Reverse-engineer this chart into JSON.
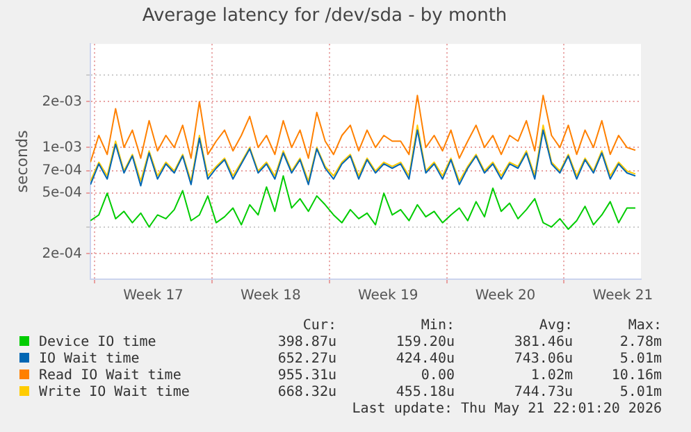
{
  "chart_data": {
    "type": "line",
    "title": "Average latency for /dev/sda - by month",
    "ylabel": "seconds",
    "log": true,
    "grid": true,
    "legend": "bottom",
    "marker": "none",
    "line_style": "solid",
    "x": [
      "2026-04-19T18:00",
      "2026-04-20T06:00",
      "2026-04-20T18:00",
      "2026-04-21T06:00",
      "2026-04-21T18:00",
      "2026-04-22T06:00",
      "2026-04-22T18:00",
      "2026-04-23T06:00",
      "2026-04-23T18:00",
      "2026-04-24T06:00",
      "2026-04-24T18:00",
      "2026-04-25T06:00",
      "2026-04-25T18:00",
      "2026-04-26T06:00",
      "2026-04-26T18:00",
      "2026-04-27T06:00",
      "2026-04-27T18:00",
      "2026-04-28T06:00",
      "2026-04-28T18:00",
      "2026-04-29T06:00",
      "2026-04-29T18:00",
      "2026-04-30T06:00",
      "2026-04-30T18:00",
      "2026-05-01T06:00",
      "2026-05-01T18:00",
      "2026-05-02T06:00",
      "2026-05-02T18:00",
      "2026-05-03T06:00",
      "2026-05-03T18:00",
      "2026-05-04T06:00",
      "2026-05-04T18:00",
      "2026-05-05T06:00",
      "2026-05-05T18:00",
      "2026-05-06T06:00",
      "2026-05-06T18:00",
      "2026-05-07T06:00",
      "2026-05-07T18:00",
      "2026-05-08T06:00",
      "2026-05-08T18:00",
      "2026-05-09T06:00",
      "2026-05-09T18:00",
      "2026-05-10T06:00",
      "2026-05-10T18:00",
      "2026-05-11T06:00",
      "2026-05-11T18:00",
      "2026-05-12T06:00",
      "2026-05-12T18:00",
      "2026-05-13T06:00",
      "2026-05-13T18:00",
      "2026-05-14T06:00",
      "2026-05-14T18:00",
      "2026-05-15T06:00",
      "2026-05-15T18:00",
      "2026-05-16T06:00",
      "2026-05-16T18:00",
      "2026-05-17T06:00",
      "2026-05-17T18:00",
      "2026-05-18T06:00",
      "2026-05-18T18:00",
      "2026-05-19T06:00",
      "2026-05-19T18:00",
      "2026-05-20T06:00",
      "2026-05-20T18:00",
      "2026-05-21T06:00",
      "2026-05-21T18:00",
      "2026-05-22T06:00"
    ],
    "xlim": [
      "2026-04-19T18:00",
      "2026-05-22T14:00"
    ],
    "xticks": [
      {
        "value": "2026-04-20",
        "label": null
      },
      {
        "value": "2026-04-23T12:00",
        "label": "Week 17"
      },
      {
        "value": "2026-04-27",
        "label": null
      },
      {
        "value": "2026-04-30T12:00",
        "label": "Week 18"
      },
      {
        "value": "2026-05-04",
        "label": null
      },
      {
        "value": "2026-05-07T12:00",
        "label": "Week 19"
      },
      {
        "value": "2026-05-11",
        "label": null
      },
      {
        "value": "2026-05-14T12:00",
        "label": "Week 20"
      },
      {
        "value": "2026-05-18",
        "label": null
      },
      {
        "value": "2026-05-21T12:00",
        "label": "Week 21"
      }
    ],
    "ylim": [
      0.000136,
      0.0048
    ],
    "yticks": [
      {
        "value": 0.0002,
        "label": "2e-04"
      },
      {
        "value": 0.0003,
        "label": null
      },
      {
        "value": 0.0005,
        "label": "5e-04"
      },
      {
        "value": 0.0007,
        "label": "7e-04"
      },
      {
        "value": 0.001,
        "label": "1e-03"
      },
      {
        "value": 0.002,
        "label": "2e-03"
      },
      {
        "value": 0.003,
        "label": null
      }
    ],
    "series": [
      {
        "name": "Device IO time",
        "color": "#00cc00",
        "values": [
          0.00033,
          0.00036,
          0.0005,
          0.00034,
          0.00038,
          0.00032,
          0.00037,
          0.0003,
          0.00036,
          0.00034,
          0.00039,
          0.00052,
          0.00033,
          0.00036,
          0.00048,
          0.00032,
          0.00035,
          0.0004,
          0.00031,
          0.00042,
          0.00036,
          0.00055,
          0.00038,
          0.00065,
          0.0004,
          0.00046,
          0.00038,
          0.00048,
          0.00042,
          0.00036,
          0.00032,
          0.00039,
          0.00034,
          0.00037,
          0.00031,
          0.0005,
          0.00036,
          0.00039,
          0.00033,
          0.00042,
          0.00035,
          0.00038,
          0.00032,
          0.00036,
          0.0004,
          0.00033,
          0.00044,
          0.00035,
          0.00054,
          0.00038,
          0.00043,
          0.00034,
          0.00039,
          0.00046,
          0.00032,
          0.0003,
          0.00034,
          0.00029,
          0.00033,
          0.00041,
          0.00031,
          0.00036,
          0.00044,
          0.00032,
          0.0004,
          0.0004
        ]
      },
      {
        "name": "IO Wait time",
        "color": "#0066b3",
        "values": [
          0.00057,
          0.00078,
          0.00062,
          0.00105,
          0.00068,
          0.00088,
          0.00056,
          0.00092,
          0.00062,
          0.00078,
          0.00068,
          0.00088,
          0.00057,
          0.00115,
          0.00062,
          0.00073,
          0.00083,
          0.00062,
          0.00078,
          0.00098,
          0.00068,
          0.00078,
          0.00062,
          0.00092,
          0.00068,
          0.00083,
          0.00057,
          0.00098,
          0.00073,
          0.00062,
          0.00078,
          0.00088,
          0.00062,
          0.00083,
          0.00068,
          0.00078,
          0.00073,
          0.00078,
          0.00062,
          0.0013,
          0.00068,
          0.00078,
          0.00062,
          0.00083,
          0.00057,
          0.00073,
          0.00088,
          0.00068,
          0.00078,
          0.00062,
          0.00078,
          0.00073,
          0.00092,
          0.00062,
          0.0013,
          0.00078,
          0.00068,
          0.00088,
          0.00062,
          0.00083,
          0.00068,
          0.00092,
          0.00062,
          0.00078,
          0.00068,
          0.00065
        ]
      },
      {
        "name": "Read IO Wait time",
        "color": "#ff8000",
        "values": [
          0.0008,
          0.0012,
          0.0009,
          0.0018,
          0.001,
          0.0013,
          0.00085,
          0.0015,
          0.00095,
          0.0012,
          0.001,
          0.0014,
          0.00085,
          0.002,
          0.0009,
          0.0011,
          0.0013,
          0.00095,
          0.0012,
          0.0016,
          0.001,
          0.0012,
          0.0009,
          0.0015,
          0.001,
          0.0013,
          0.00085,
          0.0017,
          0.0011,
          0.0009,
          0.0012,
          0.0014,
          0.00095,
          0.0013,
          0.001,
          0.0012,
          0.0011,
          0.0011,
          0.0009,
          0.0022,
          0.001,
          0.0012,
          0.00095,
          0.0013,
          0.00085,
          0.0011,
          0.0014,
          0.001,
          0.0012,
          0.0009,
          0.0012,
          0.0011,
          0.0015,
          0.00095,
          0.0022,
          0.0012,
          0.001,
          0.0014,
          0.0009,
          0.0013,
          0.001,
          0.0015,
          0.0009,
          0.0012,
          0.001,
          0.00096
        ]
      },
      {
        "name": "Write IO Wait time",
        "color": "#ffcc00",
        "values": [
          0.0006,
          0.0008,
          0.00065,
          0.0011,
          0.0007,
          0.0009,
          0.0006,
          0.00095,
          0.00065,
          0.0008,
          0.0007,
          0.0009,
          0.0006,
          0.0012,
          0.00065,
          0.00075,
          0.00085,
          0.00065,
          0.0008,
          0.001,
          0.0007,
          0.0008,
          0.00065,
          0.00095,
          0.0007,
          0.00085,
          0.0006,
          0.001,
          0.00075,
          0.00065,
          0.0008,
          0.0009,
          0.00065,
          0.00085,
          0.0007,
          0.0008,
          0.00075,
          0.0008,
          0.00065,
          0.0014,
          0.0007,
          0.0008,
          0.00065,
          0.00085,
          0.0006,
          0.00075,
          0.0009,
          0.0007,
          0.0008,
          0.00065,
          0.0008,
          0.00075,
          0.00095,
          0.00065,
          0.0014,
          0.0008,
          0.0007,
          0.0009,
          0.00065,
          0.00085,
          0.0007,
          0.00095,
          0.00065,
          0.0008,
          0.0007,
          0.00067
        ]
      }
    ],
    "annotations": [
      "Cur:",
      "Min:",
      "Avg:",
      "Max:",
      "398.87u",
      "159.20u",
      "381.46u",
      "2.78m",
      "652.27u",
      "424.40u",
      "743.06u",
      "5.01m",
      "955.31u",
      "0.00",
      "1.02m",
      "10.16m",
      "668.32u",
      "455.18u",
      "744.73u",
      "5.01m",
      "Last update: Thu May 21 22:01:20 2026"
    ]
  }
}
